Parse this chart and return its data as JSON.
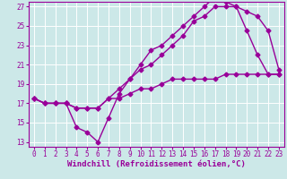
{
  "title": "",
  "xlabel": "Windchill (Refroidissement éolien,°C)",
  "ylabel": "",
  "bg_color": "#cce8e8",
  "line_color": "#990099",
  "grid_color": "#ffffff",
  "xmin": -0.5,
  "xmax": 23.5,
  "ymin": 12.5,
  "ymax": 27.5,
  "line1_x": [
    0,
    1,
    2,
    3,
    4,
    5,
    6,
    7,
    8,
    9,
    10,
    11,
    12,
    13,
    14,
    15,
    16,
    17,
    18,
    19,
    20,
    21,
    22,
    23
  ],
  "line1_y": [
    17.5,
    17.0,
    17.0,
    17.0,
    16.5,
    16.5,
    16.5,
    17.5,
    18.5,
    19.5,
    20.5,
    21.0,
    22.0,
    23.0,
    24.0,
    25.5,
    26.0,
    27.0,
    27.0,
    27.0,
    24.5,
    22.0,
    20.0,
    20.0
  ],
  "line2_x": [
    0,
    1,
    2,
    3,
    4,
    5,
    6,
    7,
    8,
    9,
    10,
    11,
    12,
    13,
    14,
    15,
    16,
    17,
    18,
    19,
    20,
    21,
    22,
    23
  ],
  "line2_y": [
    17.5,
    17.0,
    17.0,
    17.0,
    14.5,
    14.0,
    13.0,
    15.5,
    18.0,
    19.5,
    21.0,
    22.5,
    23.0,
    24.0,
    25.0,
    26.0,
    27.0,
    28.0,
    27.5,
    27.0,
    26.5,
    26.0,
    24.5,
    20.5
  ],
  "line3_x": [
    0,
    1,
    2,
    3,
    4,
    5,
    6,
    7,
    8,
    9,
    10,
    11,
    12,
    13,
    14,
    15,
    16,
    17,
    18,
    19,
    20,
    21,
    22,
    23
  ],
  "line3_y": [
    17.5,
    17.0,
    17.0,
    17.0,
    16.5,
    16.5,
    16.5,
    17.5,
    17.5,
    18.0,
    18.5,
    18.5,
    19.0,
    19.5,
    19.5,
    19.5,
    19.5,
    19.5,
    20.0,
    20.0,
    20.0,
    20.0,
    20.0,
    20.0
  ],
  "yticks": [
    13,
    15,
    17,
    19,
    21,
    23,
    25,
    27
  ],
  "xticks": [
    0,
    1,
    2,
    3,
    4,
    5,
    6,
    7,
    8,
    9,
    10,
    11,
    12,
    13,
    14,
    15,
    16,
    17,
    18,
    19,
    20,
    21,
    22,
    23
  ],
  "marker": "D",
  "markersize": 2.5,
  "linewidth": 1.0,
  "xlabel_fontsize": 6.5,
  "tick_fontsize": 5.5
}
